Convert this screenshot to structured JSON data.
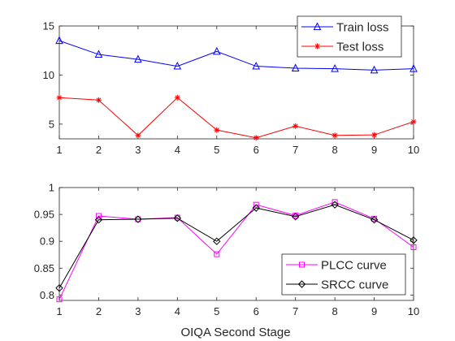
{
  "figure": {
    "xlabel": "OIQA Second Stage"
  },
  "chart_data": [
    {
      "type": "line",
      "x": [
        1,
        2,
        3,
        4,
        5,
        6,
        7,
        8,
        9,
        10
      ],
      "xlim": [
        1,
        10
      ],
      "ylim": [
        3.5,
        15
      ],
      "xticks": [
        "1",
        "2",
        "3",
        "4",
        "5",
        "6",
        "7",
        "8",
        "9",
        "10"
      ],
      "yticks": [
        {
          "value": 5,
          "label": "5"
        },
        {
          "value": 10,
          "label": "10"
        },
        {
          "value": 15,
          "label": "15"
        }
      ],
      "legend_position": "top-right",
      "series": [
        {
          "name": "Train loss",
          "color": "#0000ff",
          "marker": "triangle",
          "values": [
            13.5,
            12.1,
            11.6,
            10.9,
            12.4,
            10.9,
            10.7,
            10.65,
            10.5,
            10.65
          ]
        },
        {
          "name": "Test loss",
          "color": "#ff0000",
          "marker": "asterisk",
          "values": [
            7.7,
            7.45,
            3.85,
            7.7,
            4.4,
            3.6,
            4.8,
            3.85,
            3.9,
            5.25
          ]
        }
      ]
    },
    {
      "type": "line",
      "x": [
        1,
        2,
        3,
        4,
        5,
        6,
        7,
        8,
        9,
        10
      ],
      "xlim": [
        1,
        10
      ],
      "ylim": [
        0.79,
        1.0
      ],
      "xticks": [
        "1",
        "2",
        "3",
        "4",
        "5",
        "6",
        "7",
        "8",
        "9",
        "10"
      ],
      "yticks": [
        {
          "value": 0.8,
          "label": "0.8"
        },
        {
          "value": 0.85,
          "label": "0.85"
        },
        {
          "value": 0.9,
          "label": "0.9"
        },
        {
          "value": 0.95,
          "label": "0.95"
        },
        {
          "value": 1.0,
          "label": "1"
        }
      ],
      "legend_position": "bottom-right",
      "series": [
        {
          "name": "PLCC curve",
          "color": "#ff00ff",
          "marker": "square",
          "values": [
            0.792,
            0.947,
            0.941,
            0.944,
            0.876,
            0.968,
            0.948,
            0.973,
            0.942,
            0.889
          ]
        },
        {
          "name": "SRCC curve",
          "color": "#000000",
          "marker": "diamond",
          "values": [
            0.813,
            0.94,
            0.941,
            0.943,
            0.9,
            0.962,
            0.946,
            0.968,
            0.94,
            0.902
          ]
        }
      ]
    }
  ]
}
